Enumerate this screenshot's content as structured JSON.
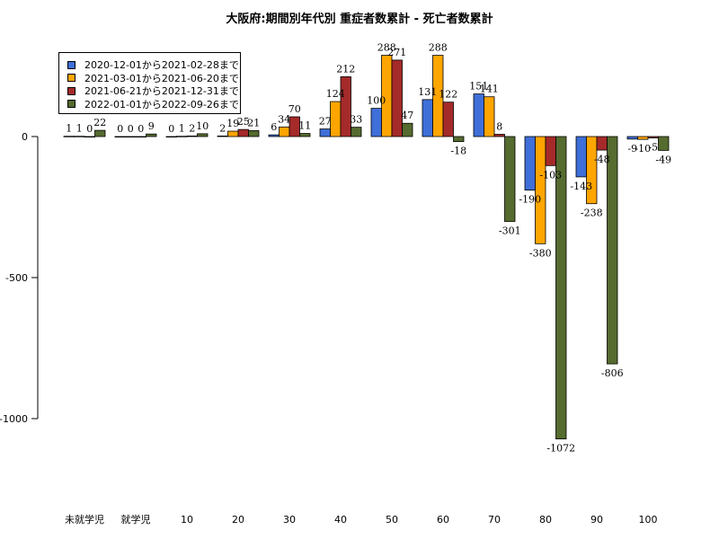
{
  "chart_data": {
    "type": "bar",
    "title": "大阪府:期間別年代別 重症者数累計 - 死亡者数累計",
    "xlabel": "",
    "ylabel": "",
    "categories": [
      "未就学児",
      "就学児",
      "10",
      "20",
      "30",
      "40",
      "50",
      "60",
      "70",
      "80",
      "90",
      "100"
    ],
    "y_ticks": [
      0,
      -500,
      -1000
    ],
    "y_tick_labels": [
      "0",
      "-500",
      "-1000"
    ],
    "ylim": [
      -1250,
      300
    ],
    "legend_position": "top-left",
    "grid": false,
    "series": [
      {
        "name": "2020-12-01から2021-02-28まで",
        "color": "#3f6fd8",
        "values": [
          1,
          0,
          0,
          2,
          6,
          27,
          100,
          131,
          151,
          -190,
          -143,
          -9
        ]
      },
      {
        "name": "2021-03-01から2021-06-20まで",
        "color": "#ffa500",
        "values": [
          1,
          0,
          1,
          19,
          34,
          124,
          288,
          288,
          141,
          -380,
          -238,
          -10
        ]
      },
      {
        "name": "2021-06-21から2021-12-31まで",
        "color": "#a52a2a",
        "values": [
          0,
          0,
          2,
          25,
          70,
          212,
          271,
          122,
          8,
          -103,
          -48,
          -5
        ]
      },
      {
        "name": "2022-01-01から2022-09-26まで",
        "color": "#556b2f",
        "values": [
          22,
          9,
          10,
          21,
          11,
          33,
          47,
          -18,
          -301,
          -1072,
          -806,
          -49
        ]
      }
    ]
  }
}
